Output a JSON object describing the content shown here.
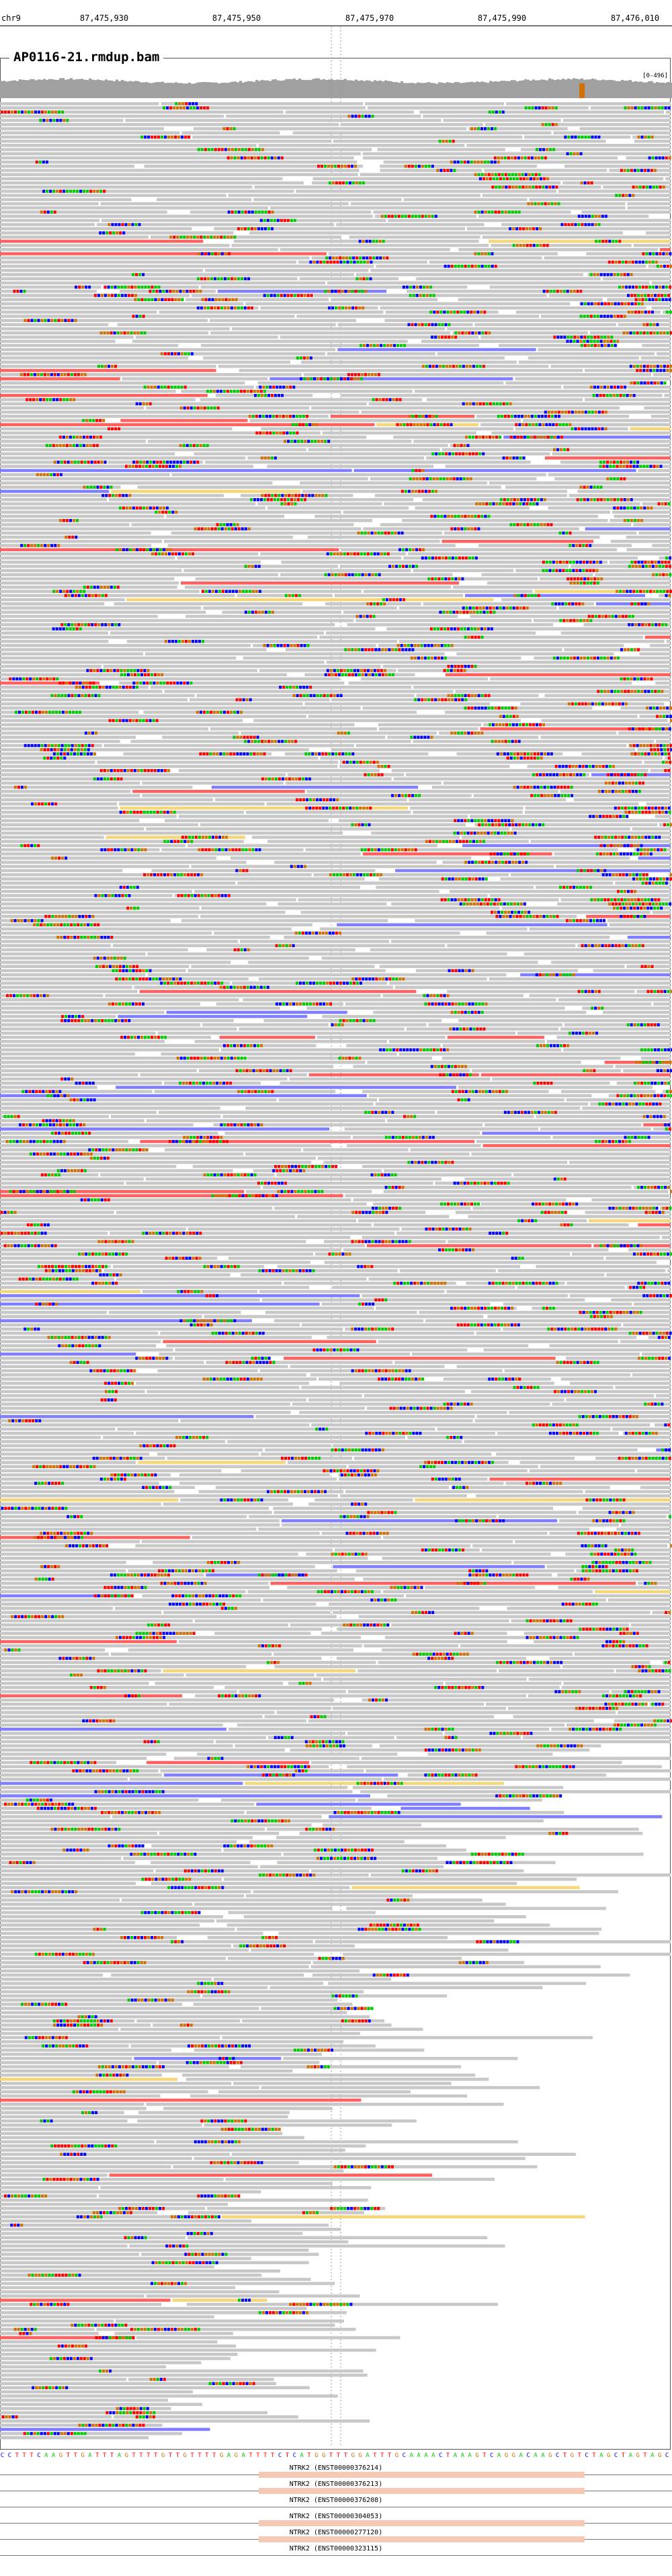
{
  "ruler": {
    "chromosome": "chr9",
    "ticks": [
      "87,475,930",
      "87,475,950",
      "87,475,970",
      "87,475,990",
      "87,476,010"
    ]
  },
  "track": {
    "title": "AP0116-21.rmdup.bam",
    "coverage_scale": "[0-496]"
  },
  "colors": {
    "read": "#c8c8c8",
    "mismatch_A": "#00cc00",
    "mismatch_C": "#0000ff",
    "mismatch_G": "#d17105",
    "mismatch_T": "#ff0000",
    "coverage": "#a0a0a0",
    "coverage_highlight": "#d17105",
    "insert_blue": "#8080ff",
    "insert_red": "#ff6060",
    "gene_exon": "#f6c9b4"
  },
  "reference_sequence": "CCTTTCAAGTTGATTTAGTTTTGTTGTTTTGAGATTTTCTCATGGTTTGGATTTGCAAAACTAAAGTCAGGACAAGCTGTCTAGCTAGTAGC",
  "genes": [
    {
      "label": "NTRK2 (ENST00000376214)"
    },
    {
      "label": "NTRK2 (ENST00000376213)"
    },
    {
      "label": "NTRK2 (ENST00000376208)"
    },
    {
      "label": "NTRK2 (ENST00000304053)"
    },
    {
      "label": "NTRK2 (ENST00000277120)"
    },
    {
      "label": "NTRK2 (ENST00000323115)"
    }
  ]
}
